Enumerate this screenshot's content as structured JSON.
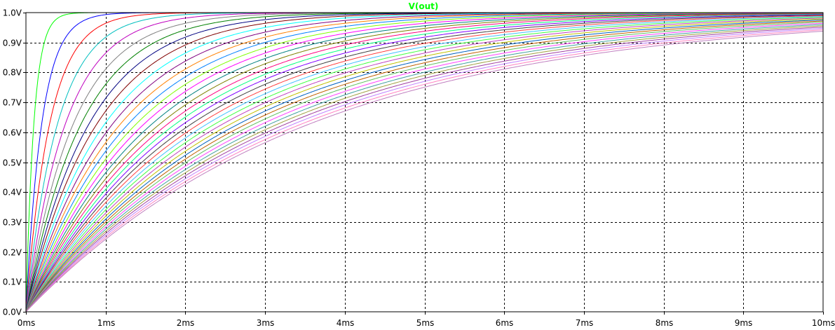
{
  "chart_data": {
    "type": "line",
    "title": "V(out)",
    "title_color": "#00ff00",
    "xlabel": "",
    "ylabel": "",
    "x_unit": "ms",
    "y_unit": "V",
    "xlim": [
      0,
      10
    ],
    "ylim": [
      0,
      1
    ],
    "x_ticks": [
      0,
      1,
      2,
      3,
      4,
      5,
      6,
      7,
      8,
      9,
      10
    ],
    "x_tick_labels": [
      "0ms",
      "1ms",
      "2ms",
      "3ms",
      "4ms",
      "5ms",
      "6ms",
      "7ms",
      "8ms",
      "9ms",
      "10ms"
    ],
    "y_ticks": [
      0,
      0.1,
      0.2,
      0.3,
      0.4,
      0.5,
      0.6,
      0.7,
      0.8,
      0.9,
      1.0
    ],
    "y_tick_labels": [
      "0.0V",
      "0.1V",
      "0.2V",
      "0.3V",
      "0.4V",
      "0.5V",
      "0.6V",
      "0.7V",
      "0.8V",
      "0.9V",
      "1.0V"
    ],
    "grid": true,
    "grid_style": "dashed",
    "legend": "none",
    "curve_model": "v(t) = 1 - exp(-t / tau)",
    "series": [
      {
        "tau_ms": 0.1,
        "color": "#00ff00"
      },
      {
        "tau_ms": 0.2,
        "color": "#0000ff"
      },
      {
        "tau_ms": 0.3,
        "color": "#ff0000"
      },
      {
        "tau_ms": 0.4,
        "color": "#00bfbf"
      },
      {
        "tau_ms": 0.5,
        "color": "#bf00bf"
      },
      {
        "tau_ms": 0.6,
        "color": "#808080"
      },
      {
        "tau_ms": 0.7,
        "color": "#008000"
      },
      {
        "tau_ms": 0.8,
        "color": "#000080"
      },
      {
        "tau_ms": 0.9,
        "color": "#800000"
      },
      {
        "tau_ms": 1.0,
        "color": "#00ffff"
      },
      {
        "tau_ms": 1.1,
        "color": "#800080"
      },
      {
        "tau_ms": 1.2,
        "color": "#ff8000"
      },
      {
        "tau_ms": 1.3,
        "color": "#0080ff"
      },
      {
        "tau_ms": 1.4,
        "color": "#80ff00"
      },
      {
        "tau_ms": 1.5,
        "color": "#ff00ff"
      },
      {
        "tau_ms": 1.6,
        "color": "#008080"
      },
      {
        "tau_ms": 1.7,
        "color": "#808000"
      },
      {
        "tau_ms": 1.8,
        "color": "#ff0080"
      },
      {
        "tau_ms": 1.9,
        "color": "#00ff80"
      },
      {
        "tau_ms": 2.0,
        "color": "#8000ff"
      },
      {
        "tau_ms": 2.1,
        "color": "#404040"
      },
      {
        "tau_ms": 2.2,
        "color": "#ff4040"
      },
      {
        "tau_ms": 2.3,
        "color": "#40c0ff"
      },
      {
        "tau_ms": 2.4,
        "color": "#40ff40"
      },
      {
        "tau_ms": 2.5,
        "color": "#c040c0"
      },
      {
        "tau_ms": 2.6,
        "color": "#c0c000"
      },
      {
        "tau_ms": 2.7,
        "color": "#0060c0"
      },
      {
        "tau_ms": 2.8,
        "color": "#c06000"
      },
      {
        "tau_ms": 2.9,
        "color": "#60c060"
      },
      {
        "tau_ms": 3.0,
        "color": "#ff40ff"
      },
      {
        "tau_ms": 3.1,
        "color": "#40a0a0"
      },
      {
        "tau_ms": 3.2,
        "color": "#a0a040"
      },
      {
        "tau_ms": 3.3,
        "color": "#a040a0"
      },
      {
        "tau_ms": 3.4,
        "color": "#c080ff"
      },
      {
        "tau_ms": 3.5,
        "color": "#ff80c0"
      },
      {
        "tau_ms": 3.6,
        "color": "#c080c0"
      }
    ]
  }
}
